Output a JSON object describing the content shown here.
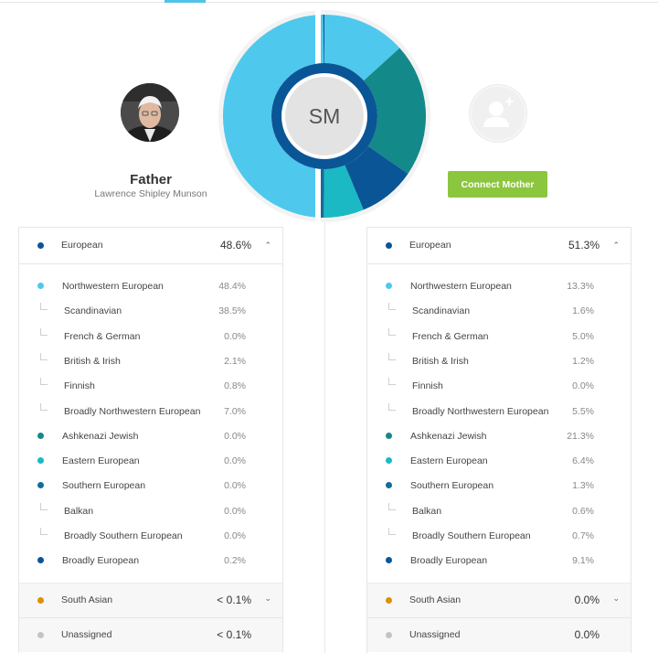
{
  "colors": {
    "nw_european": "#4fc8ed",
    "ashkenazi": "#14898a",
    "eastern": "#1ab9c4",
    "southern": "#136d9a",
    "european_dark": "#0a5596",
    "south_asian": "#e08e0b",
    "unassigned": "#c4c4c4",
    "connect_button": "#8cc63f"
  },
  "father": {
    "title": "Father",
    "full_name": "Lawrence Shipley Munson"
  },
  "mother": {
    "connect_label": "Connect Mother",
    "avatar_icon": "add-user-icon"
  },
  "center": {
    "initials": "SM"
  },
  "chart_data": {
    "type": "pie",
    "left_half_father": [
      {
        "name": "Northwestern European",
        "value": 48.4
      },
      {
        "name": "Broadly European",
        "value": 0.2
      }
    ],
    "right_half_mother": [
      {
        "name": "Northwestern European",
        "value": 13.3
      },
      {
        "name": "Ashkenazi Jewish",
        "value": 21.3
      },
      {
        "name": "Broadly European",
        "value": 9.1
      },
      {
        "name": "Eastern European",
        "value": 6.4
      },
      {
        "name": "Southern European",
        "value": 1.3
      }
    ]
  },
  "father_panel": {
    "header": {
      "label": "European",
      "value": "48.6%"
    },
    "rows": [
      {
        "label": "Northwestern European",
        "value": "48.4%",
        "type": "main",
        "color": "#4fc8ed"
      },
      {
        "label": "Scandinavian",
        "value": "38.5%",
        "type": "sub"
      },
      {
        "label": "French & German",
        "value": "0.0%",
        "type": "sub"
      },
      {
        "label": "British & Irish",
        "value": "2.1%",
        "type": "sub"
      },
      {
        "label": "Finnish",
        "value": "0.8%",
        "type": "sub"
      },
      {
        "label": "Broadly Northwestern European",
        "value": "7.0%",
        "type": "sub"
      },
      {
        "label": "Ashkenazi Jewish",
        "value": "0.0%",
        "type": "main",
        "color": "#14898a"
      },
      {
        "label": "Eastern European",
        "value": "0.0%",
        "type": "main",
        "color": "#1ab9c4"
      },
      {
        "label": "Southern European",
        "value": "0.0%",
        "type": "main",
        "color": "#136d9a"
      },
      {
        "label": "Balkan",
        "value": "0.0%",
        "type": "sub"
      },
      {
        "label": "Broadly Southern European",
        "value": "0.0%",
        "type": "sub"
      },
      {
        "label": "Broadly European",
        "value": "0.2%",
        "type": "main",
        "color": "#0a5596"
      }
    ],
    "south_asian": {
      "label": "South Asian",
      "value": "< 0.1%"
    },
    "unassigned": {
      "label": "Unassigned",
      "value": "< 0.1%"
    }
  },
  "mother_panel": {
    "header": {
      "label": "European",
      "value": "51.3%"
    },
    "rows": [
      {
        "label": "Northwestern European",
        "value": "13.3%",
        "type": "main",
        "color": "#4fc8ed"
      },
      {
        "label": "Scandinavian",
        "value": "1.6%",
        "type": "sub"
      },
      {
        "label": "French & German",
        "value": "5.0%",
        "type": "sub"
      },
      {
        "label": "British & Irish",
        "value": "1.2%",
        "type": "sub"
      },
      {
        "label": "Finnish",
        "value": "0.0%",
        "type": "sub"
      },
      {
        "label": "Broadly Northwestern European",
        "value": "5.5%",
        "type": "sub"
      },
      {
        "label": "Ashkenazi Jewish",
        "value": "21.3%",
        "type": "main",
        "color": "#14898a"
      },
      {
        "label": "Eastern European",
        "value": "6.4%",
        "type": "main",
        "color": "#1ab9c4"
      },
      {
        "label": "Southern European",
        "value": "1.3%",
        "type": "main",
        "color": "#136d9a"
      },
      {
        "label": "Balkan",
        "value": "0.6%",
        "type": "sub"
      },
      {
        "label": "Broadly Southern European",
        "value": "0.7%",
        "type": "sub"
      },
      {
        "label": "Broadly European",
        "value": "9.1%",
        "type": "main",
        "color": "#0a5596"
      }
    ],
    "south_asian": {
      "label": "South Asian",
      "value": "0.0%"
    },
    "unassigned": {
      "label": "Unassigned",
      "value": "0.0%"
    }
  }
}
